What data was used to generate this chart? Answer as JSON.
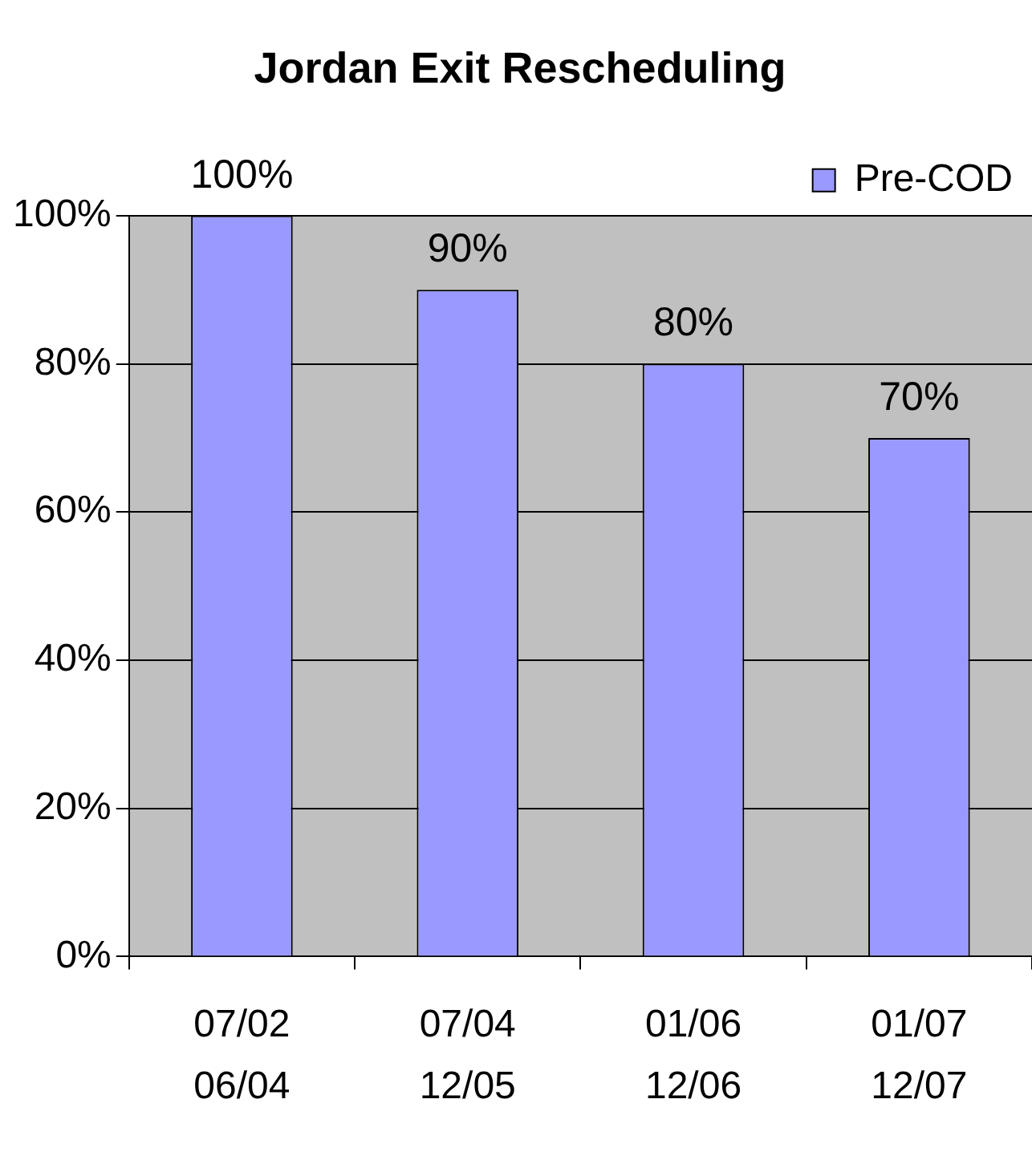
{
  "chart_data": {
    "type": "bar",
    "title": "Jordan Exit Rescheduling",
    "categories": [
      "07/02\n06/04",
      "07/04\n12/05",
      "01/06\n12/06",
      "01/07\n12/07"
    ],
    "series": [
      {
        "name": "Pre-COD",
        "color": "#9999ff",
        "values": [
          100,
          90,
          80,
          70
        ],
        "value_labels": [
          "100%",
          "90%",
          "80%",
          "70%"
        ]
      }
    ],
    "ylim": [
      0,
      100
    ],
    "yticks": [
      {
        "value": 0,
        "label": "0%"
      },
      {
        "value": 20,
        "label": "20%"
      },
      {
        "value": 40,
        "label": "40%"
      },
      {
        "value": 60,
        "label": "60%"
      },
      {
        "value": 80,
        "label": "80%"
      },
      {
        "value": 100,
        "label": "100%"
      }
    ],
    "grid": "y",
    "legend": "top right"
  }
}
